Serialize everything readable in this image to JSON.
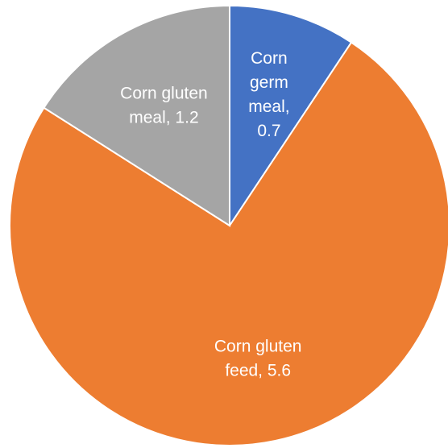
{
  "chart_data": {
    "type": "pie",
    "categories": [
      "Corn germ meal",
      "Corn gluten feed",
      "Corn gluten meal"
    ],
    "values": [
      0.7,
      5.6,
      1.2
    ],
    "value_labels": [
      "Corn germ meal, 0.7",
      "Corn gluten feed, 5.6",
      "Corn gluten meal, 1.2"
    ],
    "colors": [
      "#4472c4",
      "#ed7d31",
      "#a5a5a5"
    ]
  }
}
